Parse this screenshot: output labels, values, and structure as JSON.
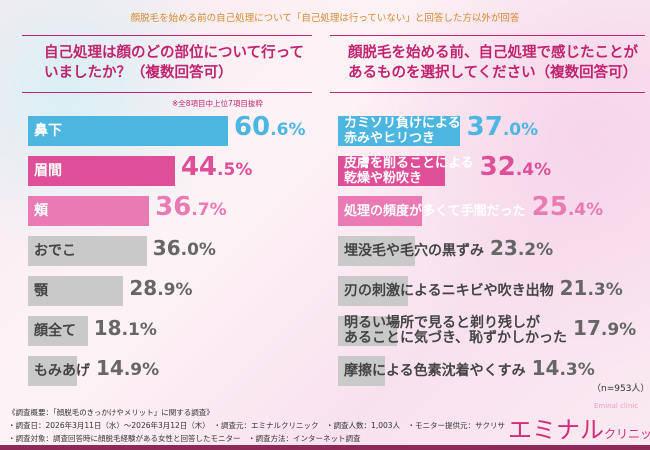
{
  "header": {
    "note": "顔脱毛を始める前の自己処理について「自己処理は行っていない」と回答した方以外が回答"
  },
  "chart_data": [
    {
      "type": "bar",
      "orientation": "horizontal",
      "title": "自己処理は顔のどの部位について行っていましたか？（複数回答可）",
      "note": "※全8項目中上位7項目抜粋",
      "categories": [
        "鼻下",
        "眉間",
        "頬",
        "おでこ",
        "顎",
        "顔全て",
        "もみあげ"
      ],
      "values": [
        60.6,
        44.5,
        36.7,
        36.0,
        28.9,
        18.1,
        14.9
      ],
      "colors": [
        "#4cb6e0",
        "#de4f98",
        "#e97ab3",
        "#c9c9c9",
        "#c9c9c9",
        "#c9c9c9",
        "#c9c9c9"
      ],
      "unit": "%",
      "xlim": [
        0,
        100
      ]
    },
    {
      "type": "bar",
      "orientation": "horizontal",
      "title": "顔脱毛を始める前、自己処理で感じたことがあるものを選択してください（複数回答可）",
      "categories": [
        "カミソリ負けによる\n赤みやヒリつき",
        "皮膚を削ることによる\n乾燥や粉吹き",
        "処理の頻度が多くて手間だった",
        "埋没毛や毛穴の黒ずみ",
        "刃の刺激によるニキビや吹き出物",
        "明るい場所で見ると剃り残しが\nあることに気づき、恥ずかしかった",
        "摩擦による色素沈着やくすみ"
      ],
      "values": [
        37.0,
        32.4,
        25.4,
        23.2,
        21.3,
        17.9,
        14.3
      ],
      "colors": [
        "#4cb6e0",
        "#de4f98",
        "#e97ab3",
        "#c9c9c9",
        "#c9c9c9",
        "#c9c9c9",
        "#c9c9c9"
      ],
      "unit": "%",
      "xlim": [
        0,
        100
      ],
      "sample": "（n=953人）"
    }
  ],
  "footer": {
    "lines": [
      "《調査概要：「顔脱毛のきっかけやメリット」に関する調査》",
      "・調査日：2026年3月11日（水）～2026年3月12日（木）　・調査元：エミナルクリニック　・調査人数：1,003人　・モニター提供元：サクリサ",
      "・調査対象：調査回答時に顔脱毛経験がある女性と回答したモニター　・調査方法：インターネット調査"
    ],
    "logo_main": "エミナル",
    "logo_sub": "クリニック",
    "logo_small": "Eminal clinic"
  }
}
